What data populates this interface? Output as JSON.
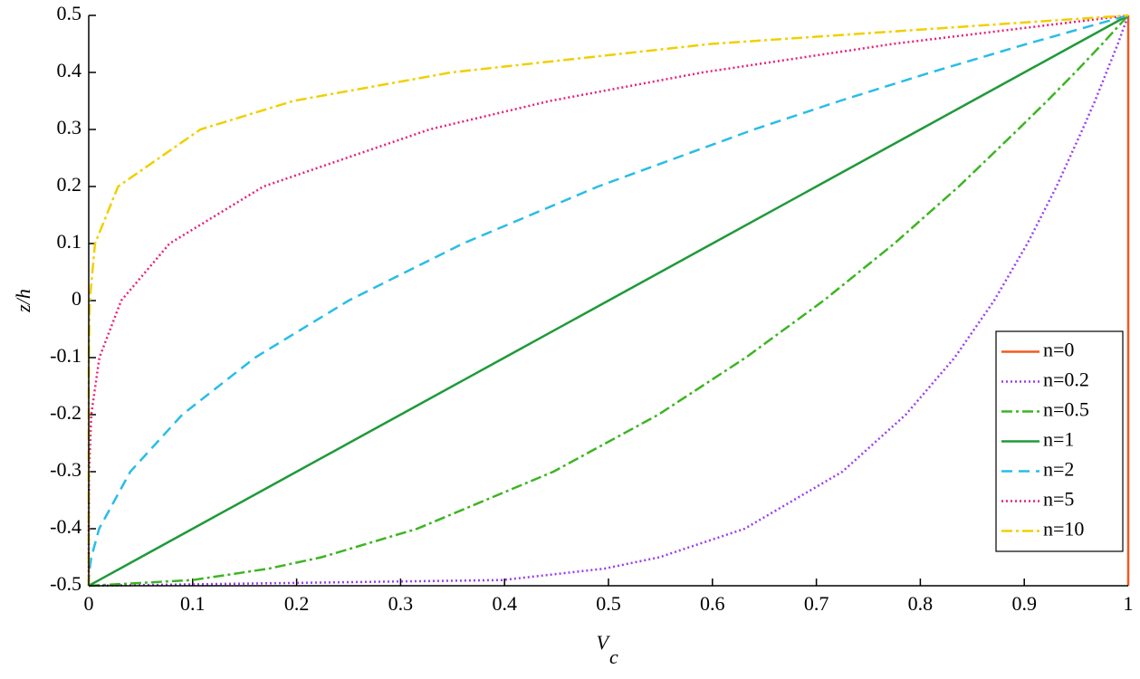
{
  "chart_data": {
    "type": "line",
    "xlabel": "V",
    "xlabel_sub": "c",
    "ylabel": "z/h",
    "xlim": [
      0,
      1
    ],
    "ylim": [
      -0.5,
      0.5
    ],
    "xticks": [
      0,
      0.1,
      0.2,
      0.3,
      0.4,
      0.5,
      0.6,
      0.7,
      0.8,
      0.9,
      1
    ],
    "yticks": [
      -0.5,
      -0.4,
      -0.3,
      -0.2,
      -0.1,
      0,
      0.1,
      0.2,
      0.3,
      0.4,
      0.5
    ],
    "legend": "lower right",
    "series": [
      {
        "name": "n=0",
        "color": "#f05a1e",
        "dash": "solid",
        "x": [
          1,
          1,
          1,
          1,
          1,
          1,
          1,
          1,
          1,
          1,
          1,
          1,
          1,
          1,
          1,
          1
        ],
        "values": [
          -0.5,
          -0.49,
          -0.47,
          -0.45,
          -0.4,
          -0.3,
          -0.2,
          -0.1,
          0,
          0.1,
          0.2,
          0.3,
          0.35,
          0.4,
          0.45,
          0.5
        ]
      },
      {
        "name": "n=0.2",
        "color": "#9a3ef0",
        "dash": "dotted",
        "x": [
          0,
          0.398,
          0.496,
          0.549,
          0.631,
          0.725,
          0.786,
          0.833,
          0.871,
          0.903,
          0.931,
          0.956,
          0.968,
          0.979,
          0.99,
          1
        ],
        "values": [
          -0.5,
          -0.49,
          -0.47,
          -0.45,
          -0.4,
          -0.3,
          -0.2,
          -0.1,
          0,
          0.1,
          0.2,
          0.3,
          0.35,
          0.4,
          0.45,
          0.5
        ]
      },
      {
        "name": "n=0.5",
        "color": "#3cb521",
        "dash": "dashdot",
        "x": [
          0,
          0.1,
          0.173,
          0.224,
          0.316,
          0.447,
          0.548,
          0.632,
          0.707,
          0.775,
          0.837,
          0.894,
          0.922,
          0.949,
          0.975,
          1
        ],
        "values": [
          -0.5,
          -0.49,
          -0.47,
          -0.45,
          -0.4,
          -0.3,
          -0.2,
          -0.1,
          0,
          0.1,
          0.2,
          0.3,
          0.35,
          0.4,
          0.45,
          0.5
        ]
      },
      {
        "name": "n=1",
        "color": "#1f9a3a",
        "dash": "solid",
        "x": [
          0,
          0.01,
          0.03,
          0.05,
          0.1,
          0.2,
          0.3,
          0.4,
          0.5,
          0.6,
          0.7,
          0.8,
          0.85,
          0.9,
          0.95,
          1
        ],
        "values": [
          -0.5,
          -0.49,
          -0.47,
          -0.45,
          -0.4,
          -0.3,
          -0.2,
          -0.1,
          0,
          0.1,
          0.2,
          0.3,
          0.35,
          0.4,
          0.45,
          0.5
        ]
      },
      {
        "name": "n=2",
        "color": "#28bde8",
        "dash": "dashed",
        "x": [
          0,
          0.0001,
          0.0009,
          0.0025,
          0.01,
          0.04,
          0.09,
          0.16,
          0.25,
          0.36,
          0.49,
          0.64,
          0.7225,
          0.81,
          0.9025,
          1
        ],
        "values": [
          -0.5,
          -0.49,
          -0.47,
          -0.45,
          -0.4,
          -0.3,
          -0.2,
          -0.1,
          0,
          0.1,
          0.2,
          0.3,
          0.35,
          0.4,
          0.45,
          0.5
        ]
      },
      {
        "name": "n=5",
        "color": "#e8207a",
        "dash": "dotted",
        "x": [
          0,
          0,
          0,
          3e-07,
          1e-05,
          0.00032,
          0.00243,
          0.01024,
          0.03125,
          0.07776,
          0.16807,
          0.32768,
          0.4437,
          0.59049,
          0.7738,
          1
        ],
        "values": [
          -0.5,
          -0.49,
          -0.47,
          -0.45,
          -0.4,
          -0.3,
          -0.2,
          -0.1,
          0,
          0.1,
          0.2,
          0.3,
          0.35,
          0.4,
          0.45,
          0.5
        ]
      },
      {
        "name": "n=10",
        "color": "#f0d000",
        "dash": "dashdot",
        "x": [
          0,
          0,
          0,
          0,
          0,
          0,
          5.9e-06,
          0.000105,
          0.000977,
          0.00605,
          0.02825,
          0.10737,
          0.19687,
          0.34868,
          0.59874,
          1
        ],
        "values": [
          -0.5,
          -0.49,
          -0.47,
          -0.45,
          -0.4,
          -0.3,
          -0.2,
          -0.1,
          0,
          0.1,
          0.2,
          0.3,
          0.35,
          0.4,
          0.45,
          0.5
        ]
      }
    ]
  }
}
